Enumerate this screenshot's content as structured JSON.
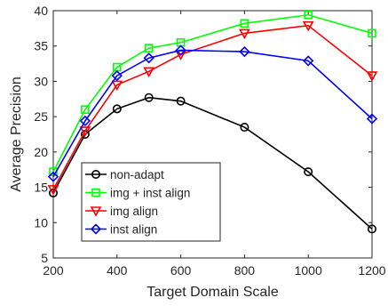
{
  "chart_data": {
    "type": "line",
    "title": "",
    "xlabel": "Target Domain Scale",
    "ylabel": "Average Precision",
    "xlim": [
      200,
      1200
    ],
    "ylim": [
      5,
      40
    ],
    "x": [
      200,
      300,
      400,
      500,
      600,
      800,
      1000,
      1200
    ],
    "xticks": [
      "200",
      "400",
      "600",
      "800",
      "1000",
      "1200"
    ],
    "yticks": [
      "5",
      "10",
      "15",
      "20",
      "25",
      "30",
      "35",
      "40"
    ],
    "grid": false,
    "legend_position": "bottom-left",
    "series": [
      {
        "name": "non-adapt",
        "color": "#000000",
        "marker": "circle",
        "values": [
          14.2,
          22.5,
          26.1,
          27.7,
          27.2,
          23.5,
          17.2,
          9.1
        ]
      },
      {
        "name": "img + inst align",
        "color": "#00ff00",
        "marker": "square",
        "values": [
          17.2,
          26.0,
          32.0,
          34.7,
          35.5,
          38.2,
          39.4,
          36.8
        ]
      },
      {
        "name": "img align",
        "color": "#ff0000",
        "marker": "triangle-down",
        "values": [
          14.7,
          23.0,
          29.5,
          31.4,
          33.8,
          36.8,
          37.9,
          30.8
        ]
      },
      {
        "name": "inst align",
        "color": "#0000ff",
        "marker": "diamond",
        "values": [
          16.5,
          24.4,
          30.8,
          33.3,
          34.4,
          34.2,
          32.9,
          24.7
        ]
      }
    ]
  }
}
